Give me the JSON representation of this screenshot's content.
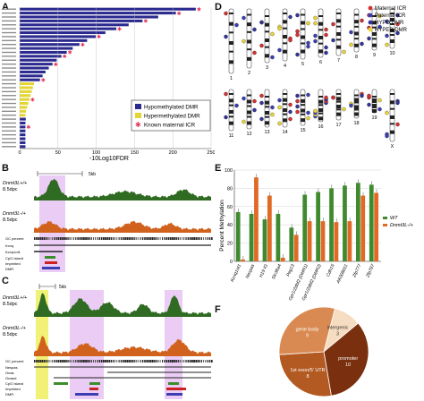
{
  "panel_labels": {
    "a": "A",
    "b": "B",
    "c": "C",
    "d": "D",
    "e": "E",
    "f": "F"
  },
  "panelA": {
    "xlabel": "-10Log10FDR",
    "ticks": [
      "0",
      "50",
      "100",
      "150",
      "200",
      "250"
    ],
    "legend": [
      "Hypomethylated DMR",
      "Hypermethylated DMR",
      "Known maternal ICR"
    ],
    "colors": {
      "hypo": "#2b2a8f",
      "hyper": "#e4d534",
      "icr": "#e0365a"
    }
  },
  "panelB": {
    "scale": "5kb",
    "tracks": [
      {
        "name": "Dnmt3L+/+",
        "sub": "8.5dpc",
        "color": "#2f6b22"
      },
      {
        "name": "Dnmt3L-/+",
        "sub": "8.5dpc",
        "color": "#d0621e"
      }
    ],
    "ann": [
      "GC percent",
      "Kcnq",
      "Kcnq1ot1",
      "CpG Island",
      "Imprinted",
      "DMR"
    ]
  },
  "panelC": {
    "scale": "5kb",
    "tracks": [
      {
        "name": "Dnmt3L+/+",
        "sub": "8.5dpc",
        "color": "#2f6b22"
      },
      {
        "name": "Dnmt3L-/+",
        "sub": "8.5dpc",
        "color": "#d0621e"
      }
    ],
    "ann": [
      "GC percent",
      "Nespas",
      "Gnas",
      "Gnasxl",
      "CpG Island",
      "Imprinted",
      "DMR"
    ]
  },
  "panelD": {
    "legend": [
      {
        "label": "Maternal ICR",
        "color": "#d33030"
      },
      {
        "label": "Paternal ICR",
        "color": "#3b3fb3"
      },
      {
        "label": "HYPO DMR",
        "color": "#333399"
      },
      {
        "label": "HYPER DMR",
        "color": "#e9d53a"
      }
    ],
    "chromosomes": [
      "1",
      "2",
      "3",
      "4",
      "5",
      "6",
      "7",
      "8",
      "9",
      "10",
      "11",
      "12",
      "13",
      "14",
      "15",
      "16",
      "17",
      "18",
      "19",
      "X"
    ]
  },
  "chart_data": [
    {
      "type": "bar",
      "panel": "E",
      "title": "",
      "xlabel": "",
      "ylabel": "Percent Methylation",
      "ylim": [
        0,
        100
      ],
      "yticks": [
        "0",
        "20",
        "40",
        "60",
        "80",
        "100"
      ],
      "categories": [
        "Kcnq1ot1",
        "Nespas",
        "H19 IG",
        "Slc38a4",
        "Peg13",
        "Gpr1/Zdbf2 (DMR1)",
        "Gpr1/Zdbf2 (DMR2)",
        "Cdh15",
        "AK008011",
        "Zfp777",
        "Zfp787"
      ],
      "legend_labels": [
        "WT",
        "Dnmt3L-/+"
      ],
      "series": [
        {
          "name": "WT",
          "color": "#3f8a2e",
          "values": [
            54,
            52,
            46,
            52,
            37,
            73,
            76,
            80,
            83,
            86,
            84
          ]
        },
        {
          "name": "Dnmt3L-/+",
          "color": "#e06a25",
          "values": [
            2,
            92,
            72,
            4,
            29,
            44,
            44,
            43,
            44,
            72,
            75
          ]
        }
      ]
    },
    {
      "type": "pie",
      "panel": "F",
      "labels": [
        "intergenic",
        "promoter",
        "1st exon/5' UTR",
        "gene body"
      ],
      "values": [
        3,
        10,
        8,
        9
      ],
      "colors": [
        "#f6dcc0",
        "#7a300e",
        "#b35a22",
        "#d98a52"
      ]
    }
  ]
}
